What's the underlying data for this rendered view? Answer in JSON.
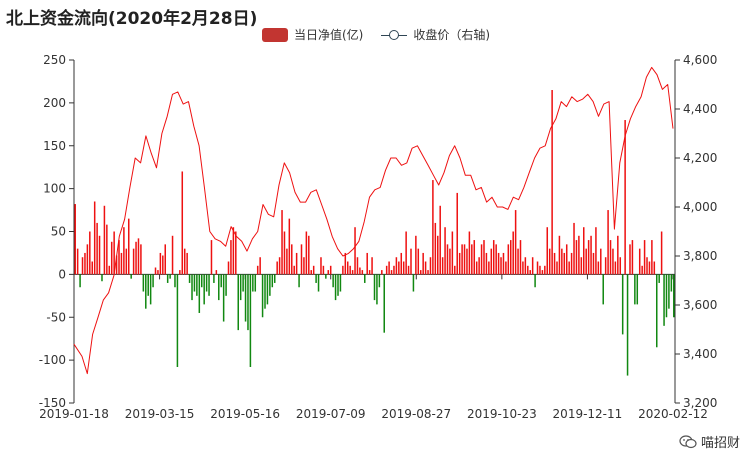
{
  "chart_data": {
    "type": "bar+line",
    "title": "北上资金流向(2020年2月28日)",
    "legend": {
      "bar": "当日净值(亿)",
      "line": "收盘价（右轴)"
    },
    "colors": {
      "positive": "#ee1111",
      "negative": "#118811",
      "line": "#ee1111",
      "legend_bar": "#c23531",
      "legend_line": "#2f4554"
    },
    "x_tick_labels": [
      "2019-01-18",
      "2019-03-15",
      "2019-05-16",
      "2019-07-09",
      "2019-08-27",
      "2019-10-23",
      "2019-12-11",
      "2020-02-12"
    ],
    "y_left": {
      "range": [
        -150,
        250
      ],
      "ticks": [
        "-150",
        "-100",
        "-50",
        "0",
        "50",
        "100",
        "150",
        "200",
        "250"
      ]
    },
    "y_right": {
      "range": [
        3200,
        4600
      ],
      "ticks": [
        "3,200",
        "3,400",
        "3,600",
        "3,800",
        "4,000",
        "4,200",
        "4,400",
        "4,600"
      ]
    },
    "bar_series_name": "当日净值(亿)",
    "bar_values": [
      82,
      30,
      -15,
      20,
      25,
      35,
      50,
      15,
      85,
      60,
      45,
      -8,
      80,
      58,
      10,
      38,
      50,
      22,
      40,
      25,
      55,
      30,
      65,
      -5,
      30,
      38,
      42,
      35,
      -20,
      -40,
      -25,
      -35,
      -15,
      8,
      5,
      25,
      22,
      35,
      -10,
      -5,
      45,
      -15,
      -108,
      5,
      120,
      30,
      25,
      -10,
      -30,
      -20,
      -25,
      -45,
      -15,
      -35,
      -20,
      -25,
      40,
      -10,
      5,
      -30,
      -15,
      -55,
      -25,
      15,
      40,
      55,
      50,
      -65,
      -30,
      -20,
      -55,
      -65,
      -108,
      -20,
      -20,
      10,
      20,
      -50,
      -40,
      -35,
      -25,
      -15,
      -10,
      15,
      20,
      75,
      50,
      30,
      65,
      35,
      10,
      25,
      -15,
      35,
      20,
      50,
      45,
      5,
      10,
      -10,
      -20,
      20,
      10,
      -5,
      5,
      10,
      -15,
      -30,
      -25,
      -20,
      10,
      25,
      15,
      10,
      5,
      55,
      20,
      8,
      5,
      -10,
      25,
      5,
      20,
      -30,
      -35,
      -15,
      5,
      -68,
      10,
      15,
      5,
      10,
      20,
      15,
      25,
      15,
      50,
      10,
      30,
      -20,
      45,
      30,
      5,
      25,
      15,
      5,
      20,
      110,
      60,
      45,
      80,
      20,
      55,
      35,
      30,
      50,
      10,
      95,
      25,
      35,
      35,
      30,
      50,
      35,
      40,
      15,
      20,
      35,
      40,
      25,
      15,
      30,
      40,
      35,
      25,
      20,
      25,
      15,
      35,
      40,
      50,
      75,
      30,
      40,
      15,
      20,
      10,
      5,
      20,
      -15,
      15,
      10,
      5,
      10,
      55,
      30,
      215,
      25,
      15,
      45,
      30,
      25,
      35,
      15,
      25,
      60,
      40,
      45,
      20,
      55,
      30,
      40,
      45,
      25,
      55,
      15,
      30,
      -35,
      20,
      75,
      40,
      30,
      15,
      45,
      20,
      -70,
      180,
      -118,
      35,
      40,
      -35,
      -35,
      30,
      10,
      40,
      20,
      15,
      40,
      15,
      -85,
      -10,
      50,
      -60,
      -50,
      -40,
      -20,
      -50
    ]
  }
}
